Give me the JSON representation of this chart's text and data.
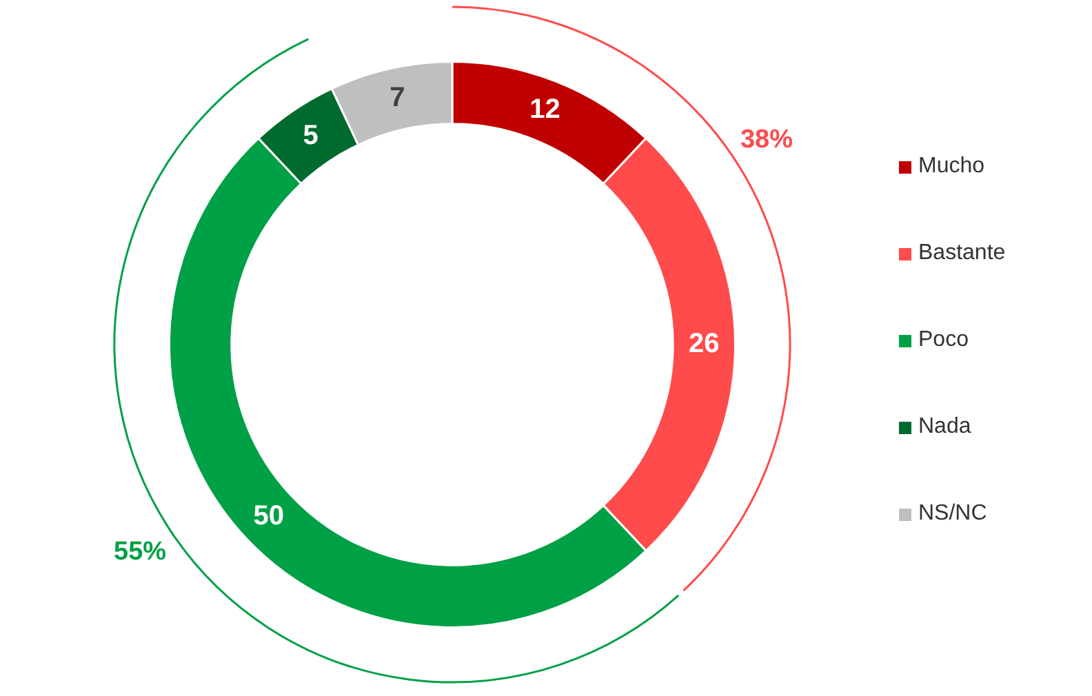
{
  "chart_data": {
    "type": "donut",
    "categories": [
      "Mucho",
      "Bastante",
      "Poco",
      "Nada",
      "NS/NC"
    ],
    "values": [
      12,
      26,
      50,
      5,
      7
    ],
    "colors": [
      "#c00000",
      "#ff4b4b",
      "#00a046",
      "#006b2e",
      "#bfbfbf"
    ],
    "data_labels": true,
    "legend": "right",
    "annotations": [
      "38%",
      "55%"
    ]
  }
}
